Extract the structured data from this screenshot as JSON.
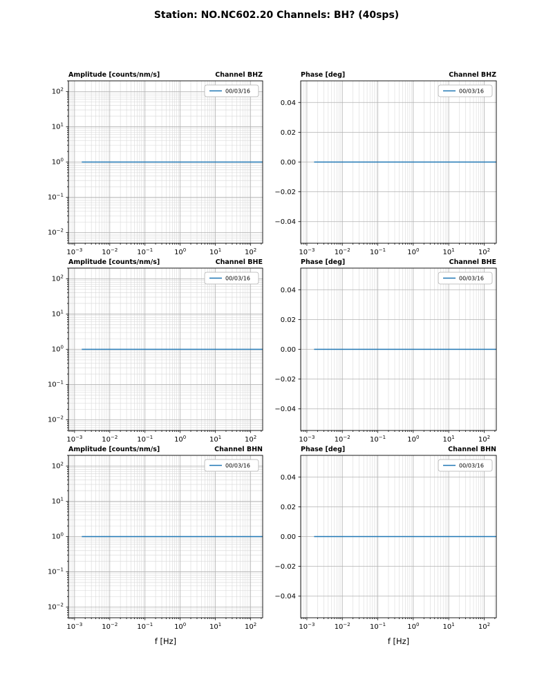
{
  "page": {
    "title": "Station: NO.NC602.20 Channels: BH? (40sps)"
  },
  "colors": {
    "line": "#1f77b4",
    "grid_major": "#b0b0b0",
    "grid_minor": "#d6d6d6"
  },
  "chart_data": [
    {
      "type": "line",
      "name": "amplitude-bhz",
      "title_left": "Amplitude [counts/nm/s]",
      "title_right": "Channel BHZ",
      "xscale": "log",
      "yscale": "log",
      "xlim": [
        0.00067,
        220
      ],
      "ylim": [
        0.005,
        200
      ],
      "xticks_exp": [
        -3,
        -2,
        -1,
        0,
        1,
        2
      ],
      "yticks_exp": [
        -2,
        -1,
        0,
        1,
        2
      ],
      "xlabel": "",
      "legend": [
        {
          "label": "00/03/16",
          "color": "#1f77b4"
        }
      ],
      "series": [
        {
          "name": "00/03/16",
          "color": "#1f77b4",
          "x": [
            0.0016,
            215
          ],
          "y": [
            1,
            1
          ]
        }
      ]
    },
    {
      "type": "line",
      "name": "phase-bhz",
      "title_left": "Phase [deg]",
      "title_right": "Channel BHZ",
      "xscale": "log",
      "yscale": "linear",
      "xlim": [
        0.00067,
        220
      ],
      "ylim": [
        -0.0545,
        0.0545
      ],
      "xticks_exp": [
        -3,
        -2,
        -1,
        0,
        1,
        2
      ],
      "yticks": [
        -0.04,
        -0.02,
        0,
        0.02,
        0.04
      ],
      "xlabel": "",
      "legend": [
        {
          "label": "00/03/16",
          "color": "#1f77b4"
        }
      ],
      "series": [
        {
          "name": "00/03/16",
          "color": "#1f77b4",
          "x": [
            0.0016,
            215
          ],
          "y": [
            0,
            0
          ]
        }
      ]
    },
    {
      "type": "line",
      "name": "amplitude-bhe",
      "title_left": "Amplitude [counts/nm/s]",
      "title_right": "Channel BHE",
      "xscale": "log",
      "yscale": "log",
      "xlim": [
        0.00067,
        220
      ],
      "ylim": [
        0.005,
        200
      ],
      "xticks_exp": [
        -3,
        -2,
        -1,
        0,
        1,
        2
      ],
      "yticks_exp": [
        -2,
        -1,
        0,
        1,
        2
      ],
      "xlabel": "",
      "legend": [
        {
          "label": "00/03/16",
          "color": "#1f77b4"
        }
      ],
      "series": [
        {
          "name": "00/03/16",
          "color": "#1f77b4",
          "x": [
            0.0016,
            215
          ],
          "y": [
            1,
            1
          ]
        }
      ]
    },
    {
      "type": "line",
      "name": "phase-bhe",
      "title_left": "Phase [deg]",
      "title_right": "Channel BHE",
      "xscale": "log",
      "yscale": "linear",
      "xlim": [
        0.00067,
        220
      ],
      "ylim": [
        -0.0545,
        0.0545
      ],
      "xticks_exp": [
        -3,
        -2,
        -1,
        0,
        1,
        2
      ],
      "yticks": [
        -0.04,
        -0.02,
        0,
        0.02,
        0.04
      ],
      "xlabel": "",
      "legend": [
        {
          "label": "00/03/16",
          "color": "#1f77b4"
        }
      ],
      "series": [
        {
          "name": "00/03/16",
          "color": "#1f77b4",
          "x": [
            0.0016,
            215
          ],
          "y": [
            0,
            0
          ]
        }
      ]
    },
    {
      "type": "line",
      "name": "amplitude-bhn",
      "title_left": "Amplitude [counts/nm/s]",
      "title_right": "Channel BHN",
      "xscale": "log",
      "yscale": "log",
      "xlim": [
        0.00067,
        220
      ],
      "ylim": [
        0.005,
        200
      ],
      "xticks_exp": [
        -3,
        -2,
        -1,
        0,
        1,
        2
      ],
      "yticks_exp": [
        -2,
        -1,
        0,
        1,
        2
      ],
      "xlabel": "f [Hz]",
      "legend": [
        {
          "label": "00/03/16",
          "color": "#1f77b4"
        }
      ],
      "series": [
        {
          "name": "00/03/16",
          "color": "#1f77b4",
          "x": [
            0.0016,
            215
          ],
          "y": [
            1,
            1
          ]
        }
      ]
    },
    {
      "type": "line",
      "name": "phase-bhn",
      "title_left": "Phase [deg]",
      "title_right": "Channel BHN",
      "xscale": "log",
      "yscale": "linear",
      "xlim": [
        0.00067,
        220
      ],
      "ylim": [
        -0.0545,
        0.0545
      ],
      "xticks_exp": [
        -3,
        -2,
        -1,
        0,
        1,
        2
      ],
      "yticks": [
        -0.04,
        -0.02,
        0,
        0.02,
        0.04
      ],
      "xlabel": "f [Hz]",
      "legend": [
        {
          "label": "00/03/16",
          "color": "#1f77b4"
        }
      ],
      "series": [
        {
          "name": "00/03/16",
          "color": "#1f77b4",
          "x": [
            0.0016,
            215
          ],
          "y": [
            0,
            0
          ]
        }
      ]
    }
  ]
}
